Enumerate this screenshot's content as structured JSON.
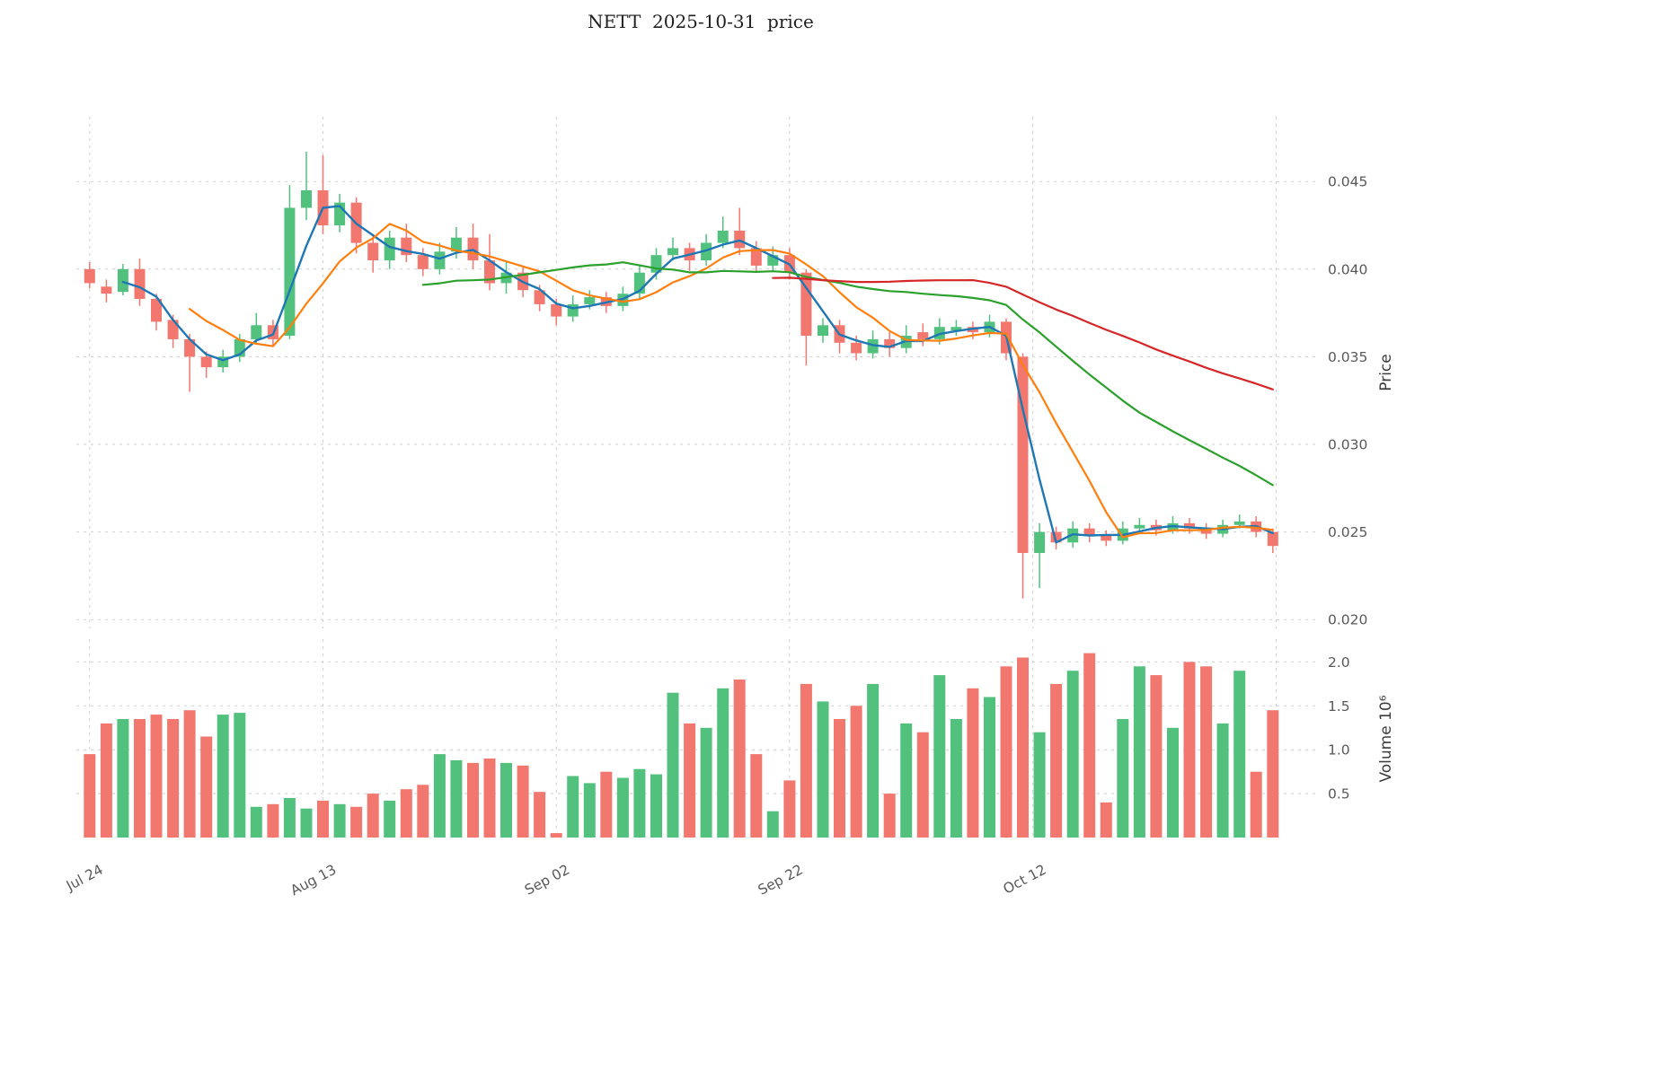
{
  "title": "NETT  2025-10-31  price",
  "chart_data": {
    "type": "candlestick",
    "title": "NETT  2025-10-31  price",
    "legend_position": "none",
    "grid": "dashed",
    "price_axis": {
      "label": "Price",
      "side": "right",
      "min": 0.0195,
      "max": 0.0487,
      "ticks": [
        {
          "value": 0.02,
          "label": "0.020"
        },
        {
          "value": 0.025,
          "label": "0.025"
        },
        {
          "value": 0.03,
          "label": "0.030"
        },
        {
          "value": 0.035,
          "label": "0.035"
        },
        {
          "value": 0.04,
          "label": "0.040"
        },
        {
          "value": 0.045,
          "label": "0.045"
        }
      ]
    },
    "volume_axis": {
      "label": "Volume  10⁶",
      "side": "right",
      "min": 0,
      "max": 2.26,
      "ticks": [
        {
          "value": 0.5,
          "label": "0.5"
        },
        {
          "value": 1.0,
          "label": "1.0"
        },
        {
          "value": 1.5,
          "label": "1.5"
        },
        {
          "value": 2.0,
          "label": "2.0"
        }
      ]
    },
    "x_axis": {
      "ticks": [
        {
          "index": 0,
          "label": "Jul 24"
        },
        {
          "index": 14,
          "label": "Aug 13"
        },
        {
          "index": 28,
          "label": "Sep 02"
        },
        {
          "index": 42,
          "label": "Sep 22"
        },
        {
          "index": 56.6,
          "label": "Oct 12"
        },
        {
          "index": 71.2,
          "label": ""
        }
      ]
    },
    "colors": {
      "up": "#53c17e",
      "down": "#f1776f",
      "ma_short": "#1f77b4",
      "ma_medium": "#ff7f0e",
      "ma_long": "#2ca02c",
      "ma_very_long": "#d62728",
      "grid": "#cfcfcf",
      "tick_text": "#595959",
      "axis_label_text": "#3c3c3c"
    },
    "moving_averages": [
      {
        "name": "ma-short",
        "window": 3,
        "color": "#1f77b4",
        "width": 2.4
      },
      {
        "name": "ma-medium",
        "window": 7,
        "color": "#ff7f0e",
        "width": 2.2
      },
      {
        "name": "ma-long",
        "window": 21,
        "color": "#2ca02c",
        "width": 2.2
      },
      {
        "name": "ma-very-long",
        "window": 42,
        "color": "#d62728",
        "width": 2.2
      }
    ],
    "volume_unit": 1000000,
    "candles": {
      "columns": [
        "date",
        "open",
        "high",
        "low",
        "close",
        "volume_millions"
      ],
      "rows": [
        [
          "2025-07-24",
          0.04,
          0.0404,
          0.0389,
          0.0392,
          0.95
        ],
        [
          "2025-07-25",
          0.039,
          0.0394,
          0.0381,
          0.0386,
          1.3
        ],
        [
          "2025-07-28",
          0.0387,
          0.0403,
          0.0385,
          0.04,
          1.35
        ],
        [
          "2025-07-29",
          0.04,
          0.0406,
          0.0379,
          0.0383,
          1.35
        ],
        [
          "2025-07-30",
          0.0383,
          0.0386,
          0.0365,
          0.037,
          1.4
        ],
        [
          "2025-07-31",
          0.0371,
          0.0374,
          0.0355,
          0.036,
          1.35
        ],
        [
          "2025-08-01",
          0.036,
          0.0363,
          0.033,
          0.035,
          1.45
        ],
        [
          "2025-08-04",
          0.035,
          0.0353,
          0.0338,
          0.0344,
          1.15
        ],
        [
          "2025-08-05",
          0.0344,
          0.0354,
          0.0341,
          0.035,
          1.4
        ],
        [
          "2025-08-06",
          0.035,
          0.0363,
          0.0347,
          0.036,
          1.42
        ],
        [
          "2025-08-07",
          0.036,
          0.0375,
          0.0357,
          0.0368,
          0.35
        ],
        [
          "2025-08-08",
          0.0368,
          0.0371,
          0.0356,
          0.036,
          0.38
        ],
        [
          "2025-08-11",
          0.0362,
          0.0448,
          0.036,
          0.0435,
          0.45
        ],
        [
          "2025-08-12",
          0.0435,
          0.0467,
          0.0428,
          0.0445,
          0.33
        ],
        [
          "2025-08-13",
          0.0445,
          0.0465,
          0.042,
          0.0425,
          0.42
        ],
        [
          "2025-08-14",
          0.0425,
          0.0443,
          0.0421,
          0.0438,
          0.38
        ],
        [
          "2025-08-15",
          0.0438,
          0.0441,
          0.0409,
          0.0415,
          0.35
        ],
        [
          "2025-08-18",
          0.0415,
          0.042,
          0.0398,
          0.0405,
          0.5
        ],
        [
          "2025-08-19",
          0.0405,
          0.0422,
          0.04,
          0.0418,
          0.42
        ],
        [
          "2025-08-20",
          0.0418,
          0.0426,
          0.0404,
          0.0408,
          0.55
        ],
        [
          "2025-08-21",
          0.0408,
          0.0412,
          0.0396,
          0.04,
          0.6
        ],
        [
          "2025-08-22",
          0.04,
          0.0415,
          0.0397,
          0.041,
          0.95
        ],
        [
          "2025-08-25",
          0.041,
          0.0424,
          0.0406,
          0.0418,
          0.88
        ],
        [
          "2025-08-26",
          0.0418,
          0.0426,
          0.04,
          0.0405,
          0.85
        ],
        [
          "2025-08-27",
          0.0405,
          0.042,
          0.0388,
          0.0392,
          0.9
        ],
        [
          "2025-08-28",
          0.0392,
          0.0404,
          0.0386,
          0.0398,
          0.85
        ],
        [
          "2025-08-29",
          0.0398,
          0.0401,
          0.0384,
          0.0388,
          0.82
        ],
        [
          "2025-09-01",
          0.0388,
          0.0391,
          0.0376,
          0.038,
          0.52
        ],
        [
          "2025-09-02",
          0.038,
          0.0383,
          0.0368,
          0.0373,
          0.05
        ],
        [
          "2025-09-03",
          0.0373,
          0.0385,
          0.037,
          0.038,
          0.7
        ],
        [
          "2025-09-04",
          0.038,
          0.0388,
          0.0377,
          0.0384,
          0.62
        ],
        [
          "2025-09-05",
          0.0384,
          0.0387,
          0.0375,
          0.0379,
          0.75
        ],
        [
          "2025-09-08",
          0.0379,
          0.039,
          0.0376,
          0.0386,
          0.68
        ],
        [
          "2025-09-09",
          0.0386,
          0.0402,
          0.0383,
          0.0398,
          0.78
        ],
        [
          "2025-09-10",
          0.0398,
          0.0412,
          0.0394,
          0.0408,
          0.72
        ],
        [
          "2025-09-11",
          0.0408,
          0.0418,
          0.0405,
          0.0412,
          1.65
        ],
        [
          "2025-09-12",
          0.0412,
          0.0415,
          0.0399,
          0.0405,
          1.3
        ],
        [
          "2025-09-15",
          0.0405,
          0.042,
          0.0402,
          0.0415,
          1.25
        ],
        [
          "2025-09-16",
          0.0415,
          0.043,
          0.0412,
          0.0422,
          1.7
        ],
        [
          "2025-09-17",
          0.0422,
          0.0435,
          0.0408,
          0.0412,
          1.8
        ],
        [
          "2025-09-18",
          0.0412,
          0.0416,
          0.0398,
          0.0402,
          0.95
        ],
        [
          "2025-09-19",
          0.0402,
          0.0413,
          0.0399,
          0.0408,
          0.3
        ],
        [
          "2025-09-22",
          0.0408,
          0.0412,
          0.0394,
          0.0398,
          0.65
        ],
        [
          "2025-09-23",
          0.0398,
          0.04,
          0.0345,
          0.0362,
          1.75
        ],
        [
          "2025-09-24",
          0.0362,
          0.0372,
          0.0358,
          0.0368,
          1.55
        ],
        [
          "2025-09-25",
          0.0368,
          0.0371,
          0.0352,
          0.0358,
          1.35
        ],
        [
          "2025-09-26",
          0.0358,
          0.0362,
          0.0348,
          0.0352,
          1.5
        ],
        [
          "2025-09-29",
          0.0352,
          0.0365,
          0.0349,
          0.036,
          1.75
        ],
        [
          "2025-09-30",
          0.036,
          0.0364,
          0.035,
          0.0355,
          0.5
        ],
        [
          "2025-10-01",
          0.0355,
          0.0368,
          0.0352,
          0.0362,
          1.3
        ],
        [
          "2025-10-02",
          0.0364,
          0.0369,
          0.0356,
          0.036,
          1.2
        ],
        [
          "2025-10-03",
          0.036,
          0.0372,
          0.0357,
          0.0367,
          1.85
        ],
        [
          "2025-10-06",
          0.0365,
          0.0371,
          0.0362,
          0.0367,
          1.35
        ],
        [
          "2025-10-07",
          0.0367,
          0.037,
          0.036,
          0.0364,
          1.7
        ],
        [
          "2025-10-08",
          0.0364,
          0.0374,
          0.0361,
          0.037,
          1.6
        ],
        [
          "2025-10-09",
          0.037,
          0.0372,
          0.0348,
          0.0352,
          1.95
        ],
        [
          "2025-10-10",
          0.035,
          0.0352,
          0.0212,
          0.0238,
          2.05
        ],
        [
          "2025-10-13",
          0.0238,
          0.0255,
          0.0218,
          0.025,
          1.2
        ],
        [
          "2025-10-14",
          0.025,
          0.0253,
          0.024,
          0.0244,
          1.75
        ],
        [
          "2025-10-15",
          0.0244,
          0.0256,
          0.0241,
          0.0252,
          1.9
        ],
        [
          "2025-10-16",
          0.0252,
          0.0255,
          0.0244,
          0.0248,
          2.1
        ],
        [
          "2025-10-17",
          0.0248,
          0.0251,
          0.0242,
          0.0245,
          0.4
        ],
        [
          "2025-10-20",
          0.0245,
          0.0256,
          0.0243,
          0.0252,
          1.35
        ],
        [
          "2025-10-21",
          0.0252,
          0.0258,
          0.025,
          0.0254,
          1.95
        ],
        [
          "2025-10-22",
          0.0254,
          0.0257,
          0.0248,
          0.0251,
          1.85
        ],
        [
          "2025-10-23",
          0.0251,
          0.0259,
          0.0249,
          0.0255,
          1.25
        ],
        [
          "2025-10-24",
          0.0255,
          0.0258,
          0.0249,
          0.0252,
          2.0
        ],
        [
          "2025-10-27",
          0.0252,
          0.0255,
          0.0246,
          0.0249,
          1.95
        ],
        [
          "2025-10-28",
          0.0249,
          0.0257,
          0.0247,
          0.0254,
          1.3
        ],
        [
          "2025-10-29",
          0.0254,
          0.026,
          0.0252,
          0.0256,
          1.9
        ],
        [
          "2025-10-30",
          0.0256,
          0.0259,
          0.0247,
          0.025,
          0.75
        ],
        [
          "2025-10-31",
          0.025,
          0.0252,
          0.0238,
          0.0242,
          1.45
        ]
      ]
    }
  }
}
